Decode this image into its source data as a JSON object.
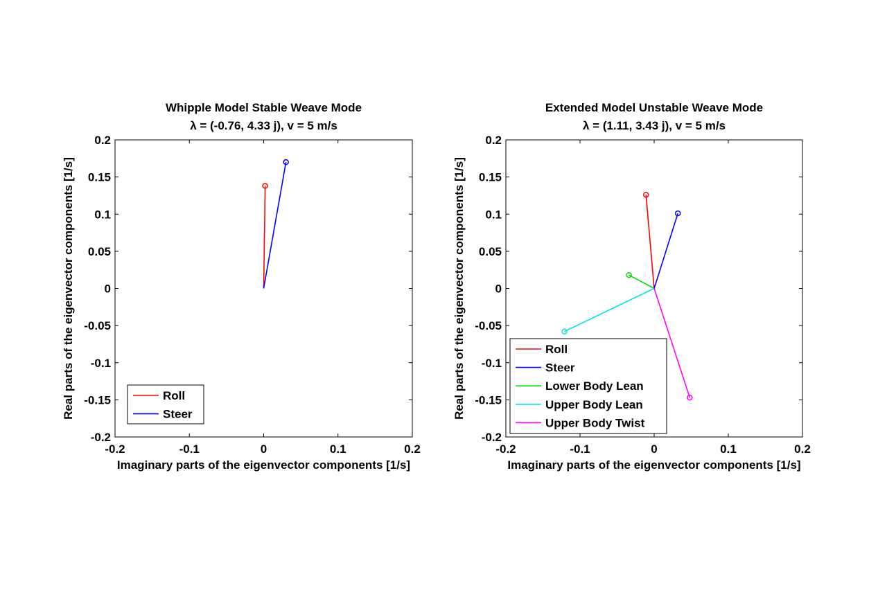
{
  "chart_data": [
    {
      "type": "line",
      "title_line1": "Whipple Model Stable Weave Mode",
      "title_line2": "λ = (-0.76, 4.33 j), v = 5 m/s",
      "xlabel": "Imaginary parts of the eigenvector components [1/s]",
      "ylabel": "Real parts of the eigenvector components [1/s]",
      "xlim": [
        -0.2,
        0.2
      ],
      "ylim": [
        -0.2,
        0.2
      ],
      "xticks": [
        "-0.2",
        "-0.1",
        "0",
        "0.1",
        "0.2"
      ],
      "yticks": [
        "0.2",
        "0.15",
        "0.1",
        "0.05",
        "0",
        "-0.05",
        "-0.1",
        "-0.15",
        "-0.2"
      ],
      "grid": false,
      "legend_position": "bottom-left",
      "series": [
        {
          "name": "Roll",
          "color": "#ff0000",
          "x": [
            0,
            0.002
          ],
          "y": [
            0,
            0.138
          ]
        },
        {
          "name": "Steer",
          "color": "#0000ff",
          "x": [
            0,
            0.03
          ],
          "y": [
            0,
            0.17
          ]
        }
      ]
    },
    {
      "type": "line",
      "title_line1": "Extended Model Unstable Weave Mode",
      "title_line2": "λ = (1.11, 3.43 j), v = 5 m/s",
      "xlabel": "Imaginary parts of the eigenvector components [1/s]",
      "ylabel": "Real parts of the eigenvector components [1/s]",
      "xlim": [
        -0.2,
        0.2
      ],
      "ylim": [
        -0.2,
        0.2
      ],
      "xticks": [
        "-0.2",
        "-0.1",
        "0",
        "0.1",
        "0.2"
      ],
      "yticks": [
        "0.2",
        "0.15",
        "0.1",
        "0.05",
        "0",
        "-0.05",
        "-0.1",
        "-0.15",
        "-0.2"
      ],
      "grid": false,
      "legend_position": "bottom-left",
      "series": [
        {
          "name": "Roll",
          "color": "#ff0000",
          "x": [
            0,
            -0.011
          ],
          "y": [
            0,
            0.126
          ]
        },
        {
          "name": "Steer",
          "color": "#0000ff",
          "x": [
            0,
            0.032
          ],
          "y": [
            0,
            0.101
          ]
        },
        {
          "name": "Lower Body Lean",
          "color": "#00dd00",
          "x": [
            0,
            -0.034
          ],
          "y": [
            0,
            0.018
          ]
        },
        {
          "name": "Upper Body Lean",
          "color": "#00e5e5",
          "x": [
            0,
            -0.121
          ],
          "y": [
            0,
            -0.058
          ]
        },
        {
          "name": "Upper Body Twist",
          "color": "#ff00ff",
          "x": [
            0,
            0.048
          ],
          "y": [
            0,
            -0.147
          ]
        }
      ]
    }
  ]
}
